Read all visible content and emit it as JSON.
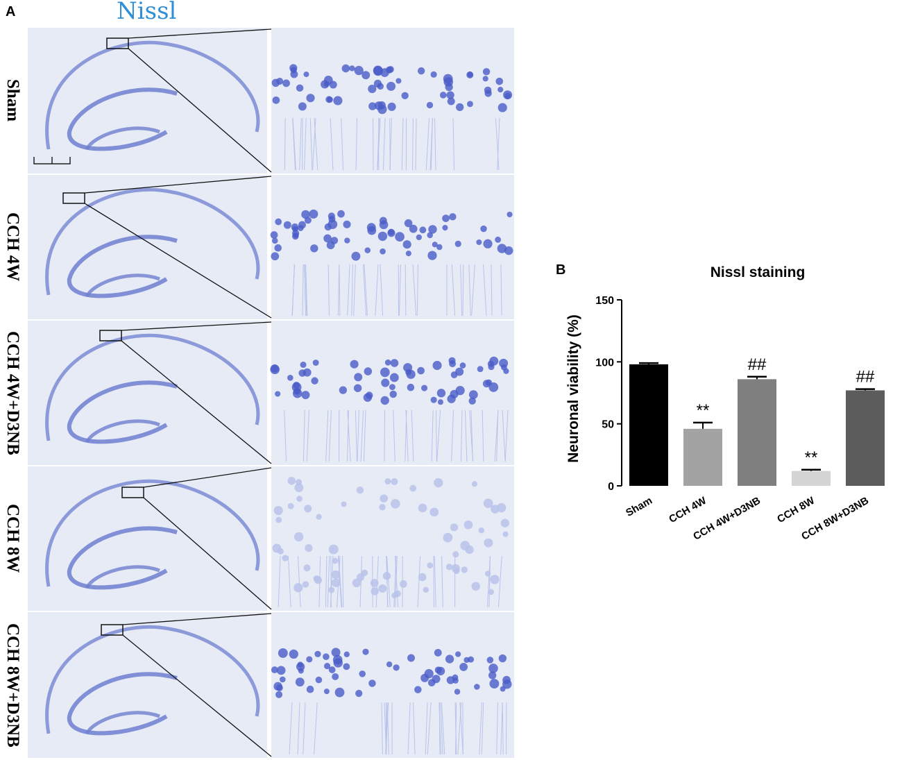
{
  "panel_a": {
    "letter": "A",
    "stain_title": "Nissl",
    "rows": [
      {
        "label": "Sham"
      },
      {
        "label": "CCH 4W"
      },
      {
        "label": "CCH 4W+D3NB"
      },
      {
        "label": "CCH 8W"
      },
      {
        "label": "CCH 8W+D3NB"
      }
    ],
    "colors": {
      "tissue_bg": "#e6ebf6",
      "stain_dark": "#6f7fd0",
      "neuron": "#4a5cc8",
      "neuron_light": "#b9c3ea"
    }
  },
  "panel_b": {
    "letter": "B"
  },
  "chart_data": {
    "type": "bar",
    "title": "Nissl staining",
    "xlabel": "",
    "ylabel": "Neuronal viability (%)",
    "ylim": [
      0,
      150
    ],
    "yticks": [
      0,
      50,
      100,
      150
    ],
    "categories": [
      "Sham",
      "CCH 4W",
      "CCH 4W+D3NB",
      "CCH 8W",
      "CCH 8W+D3NB"
    ],
    "values": [
      98,
      46,
      86,
      12,
      77
    ],
    "errors": [
      1,
      5,
      2,
      1,
      1
    ],
    "bar_colors": [
      "#000000",
      "#a3a3a3",
      "#7f7f7f",
      "#d4d4d4",
      "#5c5c5c"
    ],
    "annotations": [
      "",
      "**",
      "##",
      "**",
      "##"
    ],
    "grid": false
  }
}
